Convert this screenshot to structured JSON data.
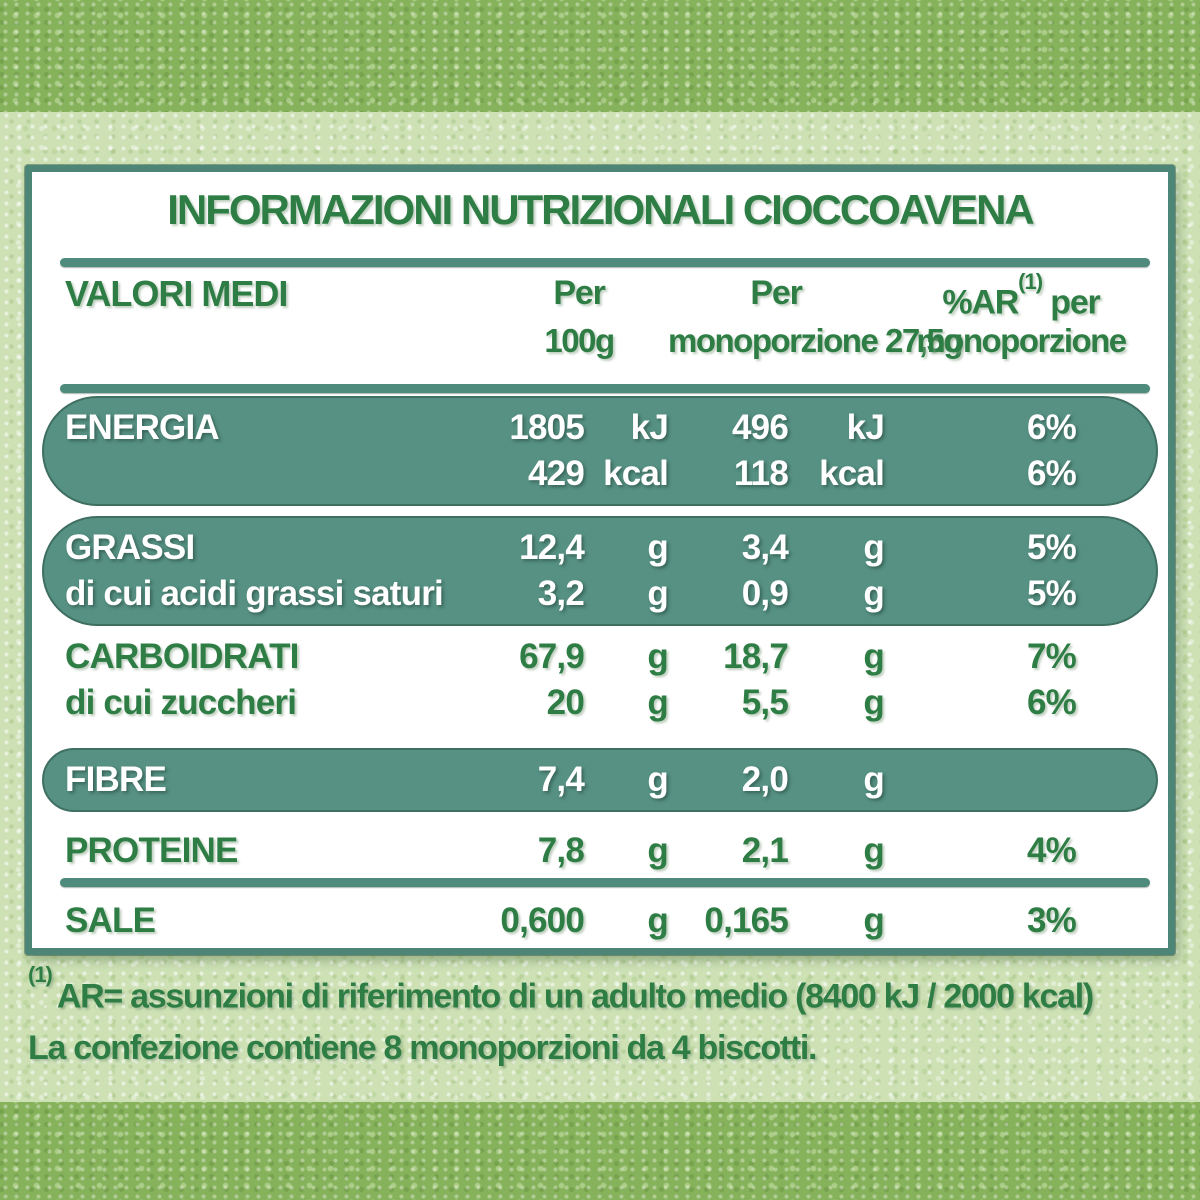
{
  "title": "INFORMAZIONI NUTRIZIONALI CIOCCOAVENA",
  "header": {
    "col_label": "VALORI MEDI",
    "per100": {
      "line1": "Per",
      "line2": "100g"
    },
    "permono": {
      "line1": "Per",
      "line2": "monoporzione 27,5g"
    },
    "ar": {
      "prefix": "%AR",
      "sup": "(1)",
      "suffix": "per",
      "line2": "monoporzione"
    }
  },
  "rows": {
    "energia": {
      "lines": [
        {
          "label": "ENERGIA",
          "v1": "1805",
          "u1": "kJ",
          "v2": "496",
          "u2": "kJ",
          "pct": "6%"
        },
        {
          "label": "",
          "v1": "429",
          "u1": "kcal",
          "v2": "118",
          "u2": "kcal",
          "pct": "6%"
        }
      ]
    },
    "grassi": {
      "lines": [
        {
          "label": "GRASSI",
          "v1": "12,4",
          "u1": "g",
          "v2": "3,4",
          "u2": "g",
          "pct": "5%"
        },
        {
          "label": "di cui acidi grassi saturi",
          "v1": "3,2",
          "u1": "g",
          "v2": "0,9",
          "u2": "g",
          "pct": "5%"
        }
      ]
    },
    "carboidrati": {
      "lines": [
        {
          "label": "CARBOIDRATI",
          "v1": "67,9",
          "u1": "g",
          "v2": "18,7",
          "u2": "g",
          "pct": "7%"
        },
        {
          "label": "di cui zuccheri",
          "v1": "20",
          "u1": "g",
          "v2": "5,5",
          "u2": "g",
          "pct": "6%"
        }
      ]
    },
    "fibre": {
      "lines": [
        {
          "label": "FIBRE",
          "v1": "7,4",
          "u1": "g",
          "v2": "2,0",
          "u2": "g",
          "pct": ""
        }
      ]
    },
    "proteine": {
      "lines": [
        {
          "label": "PROTEINE",
          "v1": "7,8",
          "u1": "g",
          "v2": "2,1",
          "u2": "g",
          "pct": "4%"
        }
      ]
    },
    "sale": {
      "lines": [
        {
          "label": "SALE",
          "v1": "0,600",
          "u1": "g",
          "v2": "0,165",
          "u2": "g",
          "pct": "3%"
        }
      ]
    }
  },
  "footnotes": {
    "sup": "(1)",
    "line1": "AR= assunzioni di riferimento di un adulto medio (8400 kJ / 2000 kcal)",
    "line2": "La confezione contiene 8 monoporzioni da 4 biscotti."
  },
  "colors": {
    "green": "#2e7d45",
    "pill": "#569183",
    "pill-border": "#3e6f61",
    "box-border": "#4d8577",
    "divider": "#4f8b7d",
    "bg-light": "#cde1b5",
    "bg-band": "#85b25a"
  }
}
